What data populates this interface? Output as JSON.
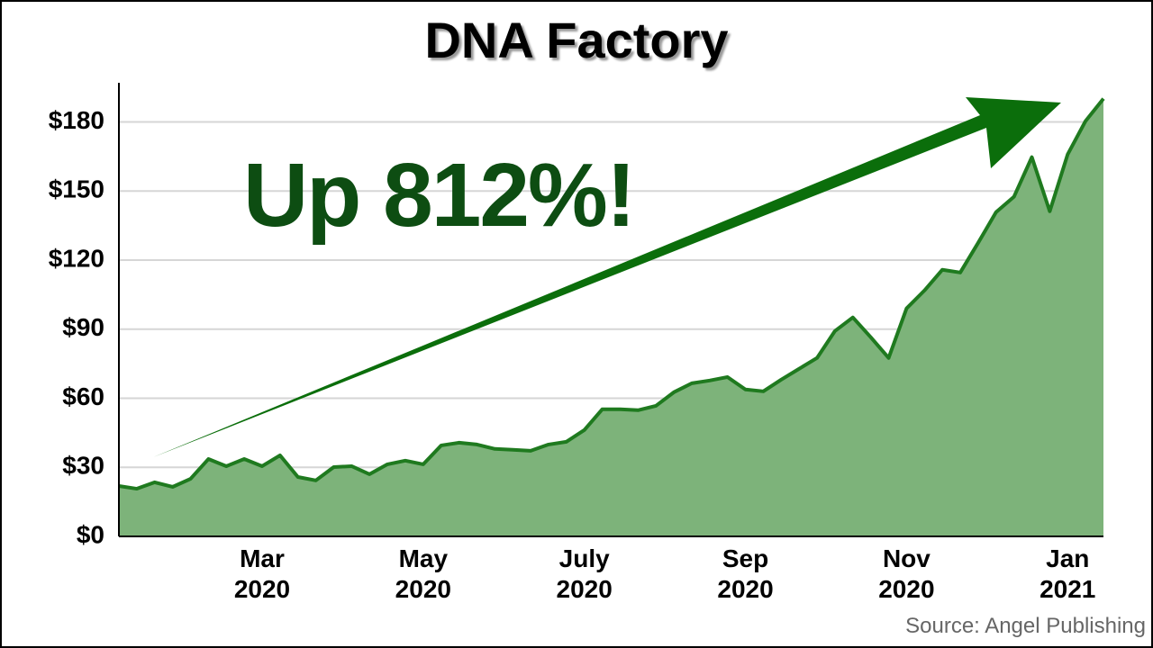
{
  "chart_data": {
    "type": "area",
    "title": "DNA Factory",
    "annotation": "Up 812%!",
    "source": "Source: Angel Publishing",
    "categories": [
      null,
      null,
      null,
      null,
      null,
      null,
      null,
      null,
      "Mar\n2020",
      null,
      null,
      null,
      null,
      null,
      null,
      null,
      null,
      "May\n2020",
      null,
      null,
      null,
      null,
      null,
      null,
      null,
      null,
      "July\n2020",
      null,
      null,
      null,
      null,
      null,
      null,
      null,
      null,
      "Sep\n2020",
      null,
      null,
      null,
      null,
      null,
      null,
      null,
      null,
      "Nov\n2020",
      null,
      null,
      null,
      null,
      null,
      null,
      null,
      null,
      "Jan\n2021",
      null,
      null
    ],
    "values": [
      21.9,
      20.7,
      23.5,
      21.5,
      25,
      33.6,
      30.5,
      33.6,
      30.5,
      35.2,
      25.8,
      24.3,
      30.1,
      30.5,
      27,
      31.3,
      32.9,
      31.3,
      39.5,
      40.7,
      39.9,
      38,
      37.6,
      37.2,
      39.9,
      41.1,
      46.2,
      55.2,
      55.2,
      54.8,
      56.7,
      62.6,
      66.5,
      67.7,
      69.2,
      63.8,
      63,
      68.1,
      72.8,
      77.5,
      89.2,
      95.1,
      86.5,
      77.5,
      99,
      106.8,
      115.8,
      114.6,
      127.5,
      140.8,
      147.5,
      164.7,
      141.2,
      165.9,
      180.4,
      190.1
    ],
    "color": "#1f7a1f",
    "fill": "#7db37a",
    "ylim": [
      0,
      197
    ],
    "yticks": [
      {
        "value": 0,
        "label": "$0"
      },
      {
        "value": 30,
        "label": "$30"
      },
      {
        "value": 60,
        "label": "$60"
      },
      {
        "value": 90,
        "label": "$90"
      },
      {
        "value": 120,
        "label": "$120"
      },
      {
        "value": 150,
        "label": "$150"
      },
      {
        "value": 180,
        "label": "$180"
      }
    ],
    "grid": true
  }
}
